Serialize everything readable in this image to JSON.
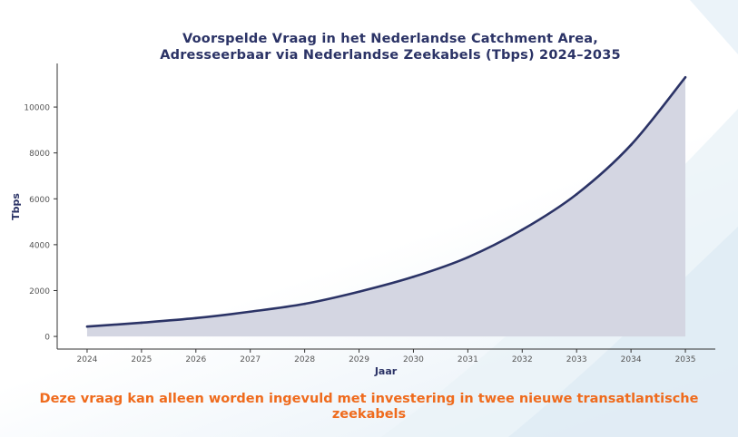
{
  "chart_data": {
    "type": "area",
    "title_line1": "Voorspelde Vraag in het Nederlandse Catchment Area,",
    "title_line2": "Adresseerbaar via Nederlandse Zeekabels (Tbps) 2024–2035",
    "xlabel": "Jaar",
    "ylabel": "Tbps",
    "xlim": [
      2023.45,
      2035.55
    ],
    "ylim": [
      -550,
      11900
    ],
    "x_ticks": [
      2024,
      2025,
      2026,
      2027,
      2028,
      2029,
      2030,
      2031,
      2032,
      2033,
      2034,
      2035
    ],
    "y_ticks": [
      0,
      2000,
      4000,
      6000,
      8000,
      10000
    ],
    "grid": false,
    "series": [
      {
        "x": [
          2024,
          2025,
          2026,
          2027,
          2028,
          2029,
          2030,
          2031,
          2032,
          2033,
          2034,
          2035
        ],
        "values": [
          430,
          600,
          800,
          1080,
          1420,
          1950,
          2600,
          3450,
          4650,
          6200,
          8350,
          11300
        ]
      }
    ],
    "colors": {
      "line": "#2b3366",
      "fill": "#d4d6e2",
      "title": "#2b3366",
      "note": "#ef6b1d"
    }
  },
  "note": {
    "text": "Deze vraag kan alleen worden ingevuld met investering in twee nieuwe transatlantische zeekabels"
  }
}
